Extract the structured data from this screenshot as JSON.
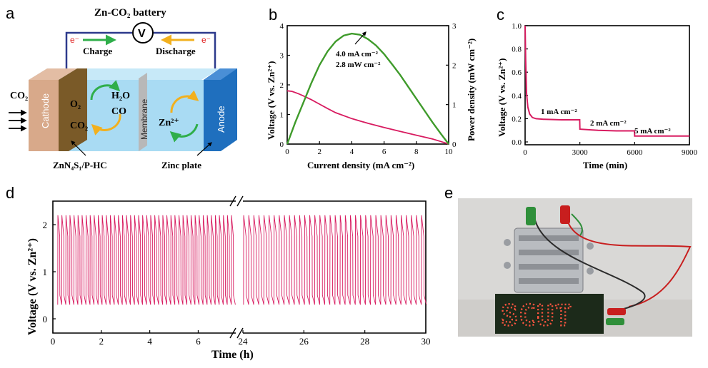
{
  "panels": {
    "a": "a",
    "b": "b",
    "c": "c",
    "d": "d",
    "e": "e"
  },
  "diagram_a": {
    "title": "Zn-CO₂ battery",
    "voltmeter": "V",
    "electron_left": "e⁻",
    "electron_right": "e⁻",
    "charge": "Charge",
    "discharge": "Discharge",
    "co2_in": "CO₂",
    "cathode": "Cathode",
    "o2": "O₂",
    "co2_cat": "CO₂",
    "h2o": "H₂O",
    "co": "CO",
    "membrane": "Membrane",
    "zn2": "Zn²⁺",
    "anode": "Anode",
    "catalyst_label": "ZnN₄S₁/P-HC",
    "zinc_label": "Zinc plate",
    "colors": {
      "cathode": "#d8a98a",
      "catalyst": "#7a5a28",
      "electrolyte": "#a9dbf3",
      "membrane": "#b8b8b8",
      "anode": "#1f6fbe",
      "charge_arrow": "#2fae4a",
      "discharge_arrow": "#f2b01e",
      "wire": "#2d3a8c",
      "electron": "#e02020"
    }
  },
  "photo_e": {
    "sign_text": "SCUT",
    "colors": {
      "background": "#d9d8d6",
      "sign": "#1c2a1a",
      "led": "#ff5540",
      "clip_red": "#c81e1e",
      "clip_green": "#2f8f3a"
    }
  },
  "chart_data": [
    {
      "id": "b",
      "type": "line",
      "xlabel": "Current density (mA cm⁻²)",
      "ylabel": "Voltage (V vs. Zn²⁺)",
      "y2label": "Power density (mW cm⁻²)",
      "xlim": [
        0,
        10
      ],
      "ylim": [
        0,
        4
      ],
      "y2lim": [
        0,
        3
      ],
      "xticks": [
        0,
        2,
        4,
        6,
        8,
        10
      ],
      "yticks": [
        0,
        1,
        2,
        3,
        4
      ],
      "y2ticks": [
        0,
        1,
        2,
        3
      ],
      "annotation": [
        "4.0 mA cm⁻²",
        "2.8 mW cm⁻²"
      ],
      "annotation_point": [
        4.0,
        2.8
      ],
      "series": [
        {
          "axis": "left",
          "color": "#d81b60",
          "x": [
            0,
            0.3,
            0.7,
            1,
            1.5,
            2,
            2.5,
            3,
            4,
            5,
            6,
            7,
            8,
            9,
            9.5,
            10
          ],
          "y": [
            1.8,
            1.78,
            1.7,
            1.63,
            1.5,
            1.35,
            1.2,
            1.06,
            0.86,
            0.7,
            0.56,
            0.43,
            0.3,
            0.17,
            0.09,
            0.0
          ]
        },
        {
          "axis": "right",
          "color": "#3f9b2b",
          "x": [
            0,
            0.5,
            1,
            1.5,
            2,
            2.5,
            3,
            3.5,
            4,
            4.5,
            5,
            5.5,
            6,
            6.5,
            7,
            7.5,
            8,
            8.5,
            9,
            9.5,
            10
          ],
          "y": [
            0.0,
            0.55,
            1.05,
            1.55,
            2.0,
            2.35,
            2.6,
            2.75,
            2.8,
            2.77,
            2.66,
            2.5,
            2.28,
            2.02,
            1.75,
            1.45,
            1.15,
            0.85,
            0.55,
            0.27,
            0.0
          ]
        }
      ]
    },
    {
      "id": "c",
      "type": "line",
      "xlabel": "Time (min)",
      "ylabel": "Voltage (V vs. Zn²⁺)",
      "xlim": [
        0,
        9000
      ],
      "ylim": [
        0,
        1.0
      ],
      "xticks": [
        0,
        3000,
        6000,
        9000
      ],
      "yticks": [
        0.0,
        0.2,
        0.4,
        0.6,
        0.8,
        1.0
      ],
      "annotations": [
        "1 mA cm⁻²",
        "2 mA cm⁻²",
        "5 mA cm⁻²"
      ],
      "series": [
        {
          "color": "#d81b60",
          "x": [
            0,
            30,
            80,
            150,
            250,
            400,
            600,
            1000,
            2000,
            2990,
            3000,
            4000,
            5000,
            5990,
            6000,
            7000,
            8000,
            9000
          ],
          "y": [
            1.0,
            0.7,
            0.42,
            0.3,
            0.24,
            0.21,
            0.2,
            0.195,
            0.19,
            0.19,
            0.11,
            0.1,
            0.095,
            0.095,
            0.05,
            0.05,
            0.05,
            0.05
          ]
        }
      ]
    },
    {
      "id": "d",
      "type": "line",
      "xlabel": "Time (h)",
      "ylabel": "Voltage (V vs. Zn²⁺)",
      "ylim": [
        0,
        2.5
      ],
      "yticks": [
        0,
        1,
        2
      ],
      "segments": [
        {
          "xlim": [
            0,
            8
          ],
          "xticks": [
            0,
            2,
            4,
            6
          ]
        },
        {
          "xlim": [
            24,
            30
          ],
          "xticks": [
            24,
            26,
            28,
            30
          ]
        }
      ],
      "charge_voltage": 2.2,
      "discharge_voltage": 0.3,
      "cycle_period_h": 0.16667,
      "series": [
        {
          "color": "#d81b60",
          "name": ""
        }
      ]
    }
  ]
}
